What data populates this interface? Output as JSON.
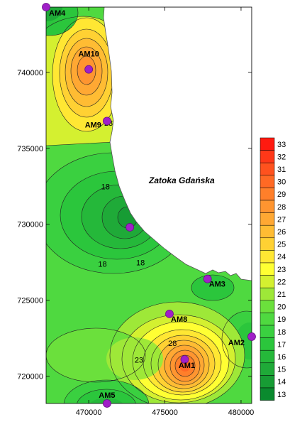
{
  "map": {
    "sea_label": "Zatoka Gdańska",
    "x_ticks": [
      470000,
      475000,
      480000
    ],
    "y_ticks": [
      720000,
      725000,
      730000,
      735000,
      740000
    ],
    "x_range": [
      467200,
      480700
    ],
    "y_range": [
      718200,
      744300
    ],
    "colors": {
      "13": "#0a8a2e",
      "14": "#179c34",
      "15": "#1faa38",
      "16": "#25b83a",
      "17": "#2bc63c",
      "18": "#3ad040",
      "19": "#4fd940",
      "20": "#6be03c",
      "21": "#9ee838",
      "22": "#d4f030",
      "23": "#ffff33",
      "24": "#ffe733",
      "25": "#ffd133",
      "26": "#ffbc33",
      "27": "#ffa833",
      "28": "#ff9530",
      "29": "#ff7f2a",
      "30": "#ff6924",
      "31": "#ff521e",
      "32": "#ff3818",
      "33": "#ff1a10"
    },
    "stations": [
      {
        "name": "AM4",
        "x": 467200,
        "y": 744300
      },
      {
        "name": "AM10",
        "x": 470000,
        "y": 740200
      },
      {
        "name": "AM9",
        "x": 471200,
        "y": 736800
      },
      {
        "name": "",
        "x": 472700,
        "y": 729800
      },
      {
        "name": "AM3",
        "x": 477800,
        "y": 726400
      },
      {
        "name": "AM8",
        "x": 475300,
        "y": 724100
      },
      {
        "name": "AM2",
        "x": 480700,
        "y": 722600
      },
      {
        "name": "AM1",
        "x": 476300,
        "y": 721100
      },
      {
        "name": "AM5",
        "x": 471200,
        "y": 718200
      }
    ],
    "contour_labels": [
      {
        "text": "23",
        "x": 471300,
        "y": 736500
      },
      {
        "text": "18",
        "x": 471100,
        "y": 732300
      },
      {
        "text": "18",
        "x": 470900,
        "y": 727200
      },
      {
        "text": "18",
        "x": 473400,
        "y": 727300
      },
      {
        "text": "28",
        "x": 475500,
        "y": 722000
      },
      {
        "text": "23",
        "x": 473300,
        "y": 720900
      }
    ]
  },
  "legend": {
    "values": [
      33,
      32,
      31,
      30,
      29,
      28,
      27,
      26,
      25,
      24,
      23,
      22,
      21,
      20,
      19,
      18,
      17,
      16,
      15,
      14,
      13
    ]
  }
}
